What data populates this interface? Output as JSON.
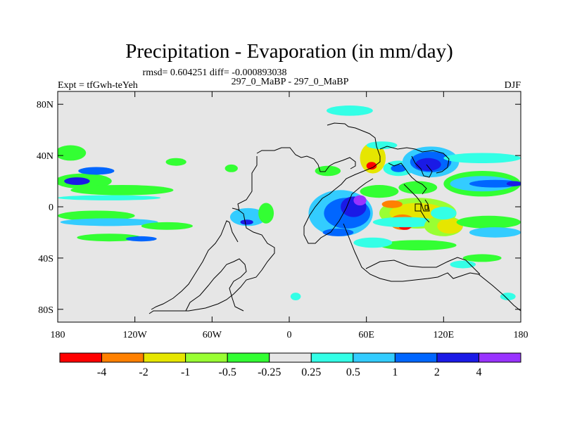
{
  "chart_data": {
    "type": "heatmap",
    "title": "Precipitation - Evaporation (in mm/day)",
    "stats_text": "rmsd= 0.604251 diff= -0.000893038",
    "left_label": "Expt = tfGwh-teYeh",
    "center_label": "297_0_MaBP - 297_0_MaBP",
    "right_label": "DJF",
    "x_ticks": [
      "180",
      "120W",
      "60W",
      "0",
      "60E",
      "120E",
      "180"
    ],
    "x_tick_values": [
      -180,
      -120,
      -60,
      0,
      60,
      120,
      180
    ],
    "y_ticks": [
      "80N",
      "40N",
      "0",
      "40S",
      "80S"
    ],
    "y_tick_values": [
      80,
      40,
      0,
      -40,
      -80
    ],
    "xlim": [
      -180,
      180
    ],
    "ylim": [
      -90,
      90
    ],
    "colorbar": {
      "colors": [
        "#ff0000",
        "#ff8000",
        "#e6e600",
        "#99ff33",
        "#33ff33",
        "#e6e6e6",
        "#33ffe6",
        "#33ccff",
        "#0066ff",
        "#1a1ae6",
        "#9933ff"
      ],
      "labels": [
        "-4",
        "-2",
        "-1",
        "-0.5",
        "-0.25",
        "0.25",
        "0.5",
        "1",
        "2",
        "4"
      ]
    },
    "blobs": [
      {
        "lon": -170,
        "lat": 42,
        "rx": 12,
        "ry": 6,
        "level": 4
      },
      {
        "lon": -160,
        "lat": 20,
        "rx": 22,
        "ry": 6,
        "level": 4
      },
      {
        "lon": -165,
        "lat": 20,
        "rx": 10,
        "ry": 3,
        "level": 9
      },
      {
        "lon": -150,
        "lat": 28,
        "rx": 14,
        "ry": 3,
        "level": 8
      },
      {
        "lon": -130,
        "lat": 13,
        "rx": 40,
        "ry": 4,
        "level": 4
      },
      {
        "lon": -140,
        "lat": 7,
        "rx": 40,
        "ry": 2,
        "level": 6
      },
      {
        "lon": -150,
        "lat": -7,
        "rx": 30,
        "ry": 4,
        "level": 4
      },
      {
        "lon": -140,
        "lat": -12,
        "rx": 38,
        "ry": 3,
        "level": 7
      },
      {
        "lon": -140,
        "lat": -24,
        "rx": 25,
        "ry": 3,
        "level": 4
      },
      {
        "lon": -115,
        "lat": -25,
        "rx": 12,
        "ry": 2,
        "level": 8
      },
      {
        "lon": -95,
        "lat": -15,
        "rx": 20,
        "ry": 3,
        "level": 4
      },
      {
        "lon": -32,
        "lat": -8,
        "rx": 14,
        "ry": 7,
        "level": 7
      },
      {
        "lon": -33,
        "lat": -12,
        "rx": 5,
        "ry": 2,
        "level": 9
      },
      {
        "lon": -18,
        "lat": -5,
        "rx": 6,
        "ry": 8,
        "level": 4
      },
      {
        "lon": -88,
        "lat": 35,
        "rx": 8,
        "ry": 3,
        "level": 4
      },
      {
        "lon": -45,
        "lat": 30,
        "rx": 5,
        "ry": 3,
        "level": 4
      },
      {
        "lon": 40,
        "lat": -5,
        "rx": 25,
        "ry": 18,
        "level": 7
      },
      {
        "lon": 45,
        "lat": -5,
        "rx": 18,
        "ry": 12,
        "level": 8
      },
      {
        "lon": 50,
        "lat": 0,
        "rx": 10,
        "ry": 8,
        "level": 9
      },
      {
        "lon": 55,
        "lat": 5,
        "rx": 5,
        "ry": 4,
        "level": 10
      },
      {
        "lon": 38,
        "lat": -20,
        "rx": 12,
        "ry": 3,
        "level": 8
      },
      {
        "lon": 30,
        "lat": 28,
        "rx": 10,
        "ry": 4,
        "level": 4
      },
      {
        "lon": 47,
        "lat": 75,
        "rx": 18,
        "ry": 4,
        "level": 6
      },
      {
        "lon": 65,
        "lat": 38,
        "rx": 10,
        "ry": 12,
        "level": 2
      },
      {
        "lon": 64,
        "lat": 32,
        "rx": 4,
        "ry": 3,
        "level": 0
      },
      {
        "lon": 72,
        "lat": 48,
        "rx": 12,
        "ry": 3,
        "level": 6
      },
      {
        "lon": 85,
        "lat": 30,
        "rx": 12,
        "ry": 6,
        "level": 6
      },
      {
        "lon": 85,
        "lat": 30,
        "rx": 6,
        "ry": 3,
        "level": 8
      },
      {
        "lon": 110,
        "lat": 35,
        "rx": 22,
        "ry": 12,
        "level": 7
      },
      {
        "lon": 110,
        "lat": 35,
        "rx": 16,
        "ry": 8,
        "level": 8
      },
      {
        "lon": 108,
        "lat": 33,
        "rx": 10,
        "ry": 5,
        "level": 9
      },
      {
        "lon": 70,
        "lat": 12,
        "rx": 15,
        "ry": 5,
        "level": 4
      },
      {
        "lon": 100,
        "lat": 15,
        "rx": 15,
        "ry": 5,
        "level": 4
      },
      {
        "lon": 150,
        "lat": 18,
        "rx": 30,
        "ry": 10,
        "level": 4
      },
      {
        "lon": 150,
        "lat": 18,
        "rx": 25,
        "ry": 6,
        "level": 7
      },
      {
        "lon": 160,
        "lat": 18,
        "rx": 20,
        "ry": 3,
        "level": 8
      },
      {
        "lon": 175,
        "lat": 18,
        "rx": 6,
        "ry": 2,
        "level": 9
      },
      {
        "lon": 150,
        "lat": 38,
        "rx": 30,
        "ry": 4,
        "level": 6
      },
      {
        "lon": 100,
        "lat": -5,
        "rx": 30,
        "ry": 12,
        "level": 3
      },
      {
        "lon": 100,
        "lat": -5,
        "rx": 22,
        "ry": 8,
        "level": 2
      },
      {
        "lon": 80,
        "lat": 2,
        "rx": 8,
        "ry": 3,
        "level": 1
      },
      {
        "lon": 88,
        "lat": -12,
        "rx": 10,
        "ry": 6,
        "level": 1
      },
      {
        "lon": 90,
        "lat": -15,
        "rx": 5,
        "ry": 3,
        "level": 0
      },
      {
        "lon": 90,
        "lat": -12,
        "rx": 25,
        "ry": 4,
        "level": 6
      },
      {
        "lon": 120,
        "lat": -15,
        "rx": 15,
        "ry": 8,
        "level": 3
      },
      {
        "lon": 125,
        "lat": -15,
        "rx": 10,
        "ry": 6,
        "level": 2
      },
      {
        "lon": 120,
        "lat": -5,
        "rx": 10,
        "ry": 5,
        "level": 6
      },
      {
        "lon": 155,
        "lat": -12,
        "rx": 25,
        "ry": 5,
        "level": 4
      },
      {
        "lon": 160,
        "lat": -20,
        "rx": 20,
        "ry": 4,
        "level": 7
      },
      {
        "lon": 100,
        "lat": -30,
        "rx": 30,
        "ry": 4,
        "level": 4
      },
      {
        "lon": 65,
        "lat": -28,
        "rx": 15,
        "ry": 4,
        "level": 6
      },
      {
        "lon": 135,
        "lat": -45,
        "rx": 10,
        "ry": 3,
        "level": 6
      },
      {
        "lon": 150,
        "lat": -40,
        "rx": 15,
        "ry": 3,
        "level": 4
      },
      {
        "lon": 170,
        "lat": -70,
        "rx": 6,
        "ry": 3,
        "level": 6
      },
      {
        "lon": 5,
        "lat": -70,
        "rx": 4,
        "ry": 3,
        "level": 6
      }
    ]
  }
}
